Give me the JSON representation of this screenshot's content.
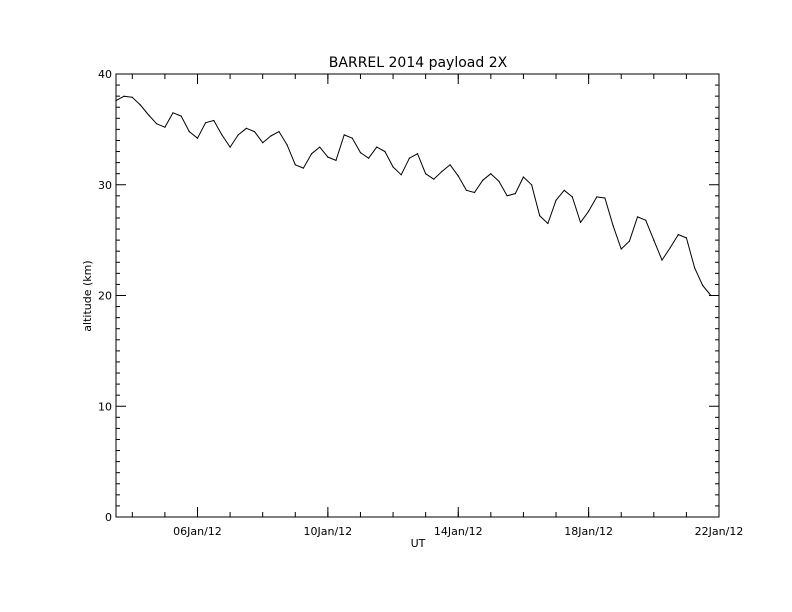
{
  "chart_data": {
    "type": "line",
    "title": "BARREL 2014 payload 2X",
    "xlabel": "UT",
    "ylabel": "altitude (km)",
    "ylim": [
      0,
      40
    ],
    "xlim": [
      "2012-01-03T12:00",
      "2012-01-22T00:00"
    ],
    "yticks": [
      {
        "value": 0,
        "label": "0"
      },
      {
        "value": 10,
        "label": "10"
      },
      {
        "value": 20,
        "label": "20"
      },
      {
        "value": 30,
        "label": "30"
      },
      {
        "value": 40,
        "label": "40"
      }
    ],
    "xticks": [
      {
        "value": "2012-01-06T00:00",
        "label": "06Jan/12"
      },
      {
        "value": "2012-01-10T00:00",
        "label": "10Jan/12"
      },
      {
        "value": "2012-01-14T00:00",
        "label": "14Jan/12"
      },
      {
        "value": "2012-01-18T00:00",
        "label": "18Jan/12"
      },
      {
        "value": "2012-01-22T00:00",
        "label": "22Jan/12"
      }
    ],
    "grid": false,
    "legend": "none",
    "line_color": "#000000",
    "series": [
      {
        "x": [
          "2012-01-03T12:00",
          "2012-01-03T18:00",
          "2012-01-04T00:00",
          "2012-01-04T06:00",
          "2012-01-04T12:00",
          "2012-01-04T18:00",
          "2012-01-05T00:00",
          "2012-01-05T06:00",
          "2012-01-05T12:00",
          "2012-01-05T18:00",
          "2012-01-06T00:00",
          "2012-01-06T06:00",
          "2012-01-06T12:00",
          "2012-01-06T18:00",
          "2012-01-07T00:00",
          "2012-01-07T06:00",
          "2012-01-07T12:00",
          "2012-01-07T18:00",
          "2012-01-08T00:00",
          "2012-01-08T06:00",
          "2012-01-08T12:00",
          "2012-01-08T18:00",
          "2012-01-09T00:00",
          "2012-01-09T06:00",
          "2012-01-09T12:00",
          "2012-01-09T18:00",
          "2012-01-10T00:00",
          "2012-01-10T06:00",
          "2012-01-10T12:00",
          "2012-01-10T18:00",
          "2012-01-11T00:00",
          "2012-01-11T06:00",
          "2012-01-11T12:00",
          "2012-01-11T18:00",
          "2012-01-12T00:00",
          "2012-01-12T06:00",
          "2012-01-12T12:00",
          "2012-01-12T18:00",
          "2012-01-13T00:00",
          "2012-01-13T06:00",
          "2012-01-13T12:00",
          "2012-01-13T18:00",
          "2012-01-14T00:00",
          "2012-01-14T06:00",
          "2012-01-14T12:00",
          "2012-01-14T18:00",
          "2012-01-15T00:00",
          "2012-01-15T06:00",
          "2012-01-15T12:00",
          "2012-01-15T18:00",
          "2012-01-16T00:00",
          "2012-01-16T06:00",
          "2012-01-16T12:00",
          "2012-01-16T18:00",
          "2012-01-17T00:00",
          "2012-01-17T06:00",
          "2012-01-17T12:00",
          "2012-01-17T18:00",
          "2012-01-18T00:00",
          "2012-01-18T06:00",
          "2012-01-18T12:00",
          "2012-01-18T18:00",
          "2012-01-19T00:00",
          "2012-01-19T06:00",
          "2012-01-19T12:00",
          "2012-01-19T18:00",
          "2012-01-20T00:00",
          "2012-01-20T06:00",
          "2012-01-20T12:00",
          "2012-01-20T18:00",
          "2012-01-21T00:00",
          "2012-01-21T06:00",
          "2012-01-21T12:00",
          "2012-01-21T18:00"
        ],
        "y": [
          37.6,
          38.0,
          37.9,
          37.2,
          36.3,
          35.5,
          35.2,
          36.5,
          36.2,
          34.8,
          34.2,
          35.6,
          35.8,
          34.5,
          33.4,
          34.5,
          35.1,
          34.8,
          33.8,
          34.4,
          34.8,
          33.6,
          31.8,
          31.5,
          32.8,
          33.4,
          32.5,
          32.2,
          34.5,
          34.2,
          32.9,
          32.4,
          33.4,
          33.0,
          31.6,
          30.9,
          32.4,
          32.8,
          31.0,
          30.5,
          31.2,
          31.8,
          30.8,
          29.5,
          29.3,
          30.4,
          31.0,
          30.3,
          29.0,
          29.2,
          30.7,
          30.0,
          27.2,
          26.5,
          28.6,
          29.5,
          28.9,
          26.6,
          27.6,
          28.9,
          28.8,
          26.3,
          24.2,
          24.9,
          27.1,
          26.8,
          25.0,
          23.2,
          24.3,
          25.5,
          25.2,
          22.5,
          20.9,
          20.0
        ]
      }
    ]
  }
}
